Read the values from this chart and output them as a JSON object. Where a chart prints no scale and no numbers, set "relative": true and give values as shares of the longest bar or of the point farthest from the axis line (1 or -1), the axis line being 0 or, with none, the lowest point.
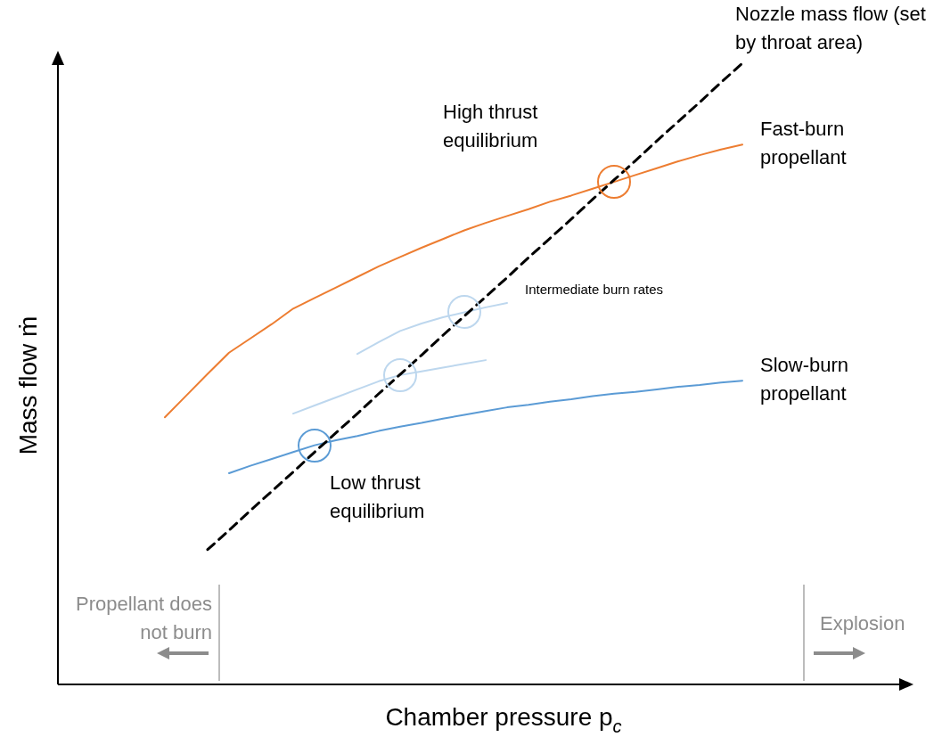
{
  "chart_data": {
    "type": "line",
    "relative": true,
    "xlabel": "Chamber pressure p$_{c}$",
    "ylabel": "Mass flow ṁ",
    "legend": false,
    "marker": "none",
    "categories": [
      null,
      null,
      null,
      null,
      null,
      null,
      null,
      null,
      null,
      null,
      null,
      null,
      null,
      null,
      null,
      null,
      null,
      null,
      null,
      null,
      null,
      null,
      null,
      null,
      null,
      null,
      null,
      null
    ],
    "series": [
      {
        "name": "Nozzle mass flow (set by throat area)",
        "color": "#000000",
        "line_style": "dashed",
        "values": [
          null,
          null,
          0.217,
          0.248,
          0.28,
          0.311,
          0.342,
          0.374,
          0.405,
          0.436,
          0.468,
          0.499,
          0.53,
          0.562,
          0.593,
          0.624,
          0.655,
          0.687,
          0.718,
          0.749,
          0.781,
          0.812,
          0.843,
          0.875,
          0.906,
          0.937,
          0.969,
          1
        ]
      },
      {
        "name": "Fast-burn propellant",
        "color": "#ed7d31",
        "values": [
          0.43,
          0.465,
          0.5,
          0.534,
          0.557,
          0.58,
          0.605,
          0.622,
          0.639,
          0.656,
          0.673,
          0.688,
          0.703,
          0.717,
          0.731,
          0.743,
          0.754,
          0.765,
          0.777,
          0.787,
          0.798,
          0.809,
          0.82,
          0.831,
          0.842,
          0.852,
          0.861,
          0.869
        ]
      },
      {
        "name": "Intermediate burn rates",
        "color": "#bdd7ee",
        "values": [
          null,
          null,
          null,
          null,
          null,
          null,
          null,
          null,
          null,
          0.532,
          0.551,
          0.569,
          0.581,
          0.591,
          0.599,
          0.607,
          0.614,
          null,
          null,
          null,
          null,
          null,
          null,
          null,
          null,
          null,
          null,
          null
        ]
      },
      {
        "color": "#bdd7ee",
        "values": [
          null,
          null,
          null,
          null,
          null,
          null,
          0.436,
          0.449,
          0.462,
          0.475,
          0.488,
          0.498,
          0.504,
          0.51,
          0.516,
          0.522,
          null,
          null,
          null,
          null,
          null,
          null,
          null,
          null,
          null,
          null,
          null,
          null
        ]
      },
      {
        "name": "Slow-burn propellant",
        "color": "#5b9bd5",
        "values": [
          null,
          null,
          null,
          0.34,
          0.352,
          0.363,
          0.374,
          0.385,
          0.393,
          0.4,
          0.408,
          0.415,
          0.421,
          0.428,
          0.434,
          0.44,
          0.446,
          0.45,
          0.455,
          0.459,
          0.464,
          0.468,
          0.471,
          0.475,
          0.479,
          0.482,
          0.486,
          0.489
        ]
      }
    ],
    "annotations": [
      "High thrust equilibrium",
      "Low thrust equilibrium",
      "Propellant does not burn",
      "Explosion"
    ]
  }
}
